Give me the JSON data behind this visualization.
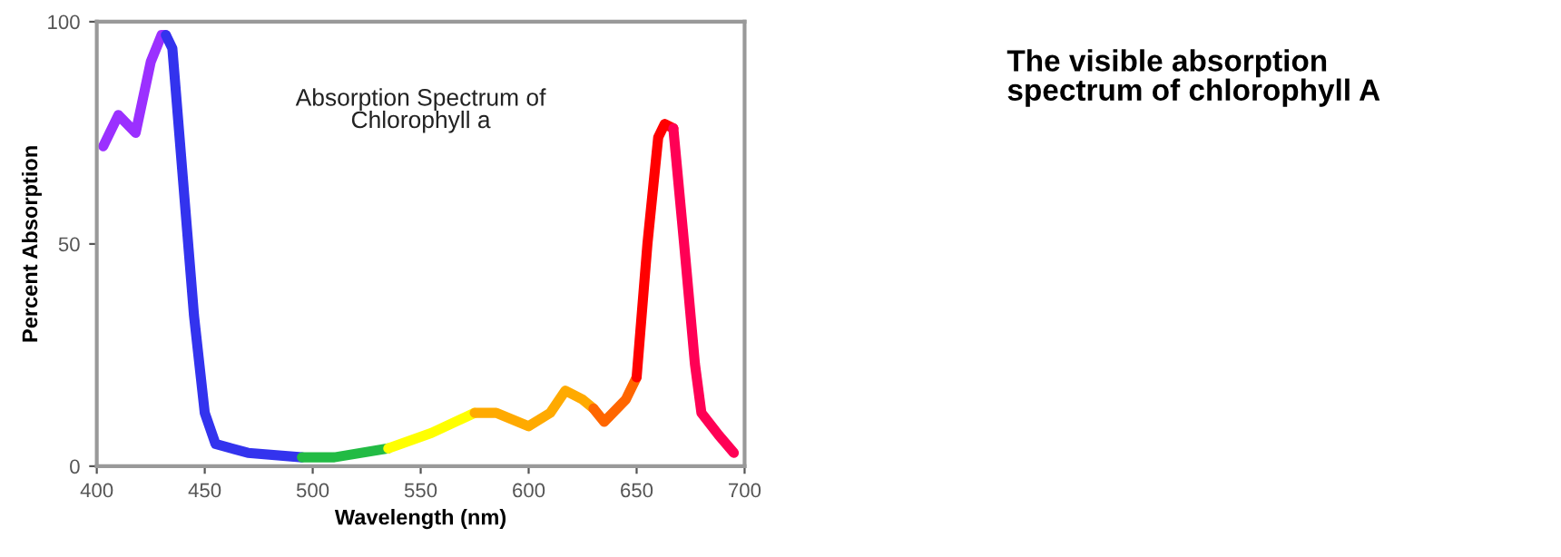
{
  "chart_data": {
    "type": "line",
    "title": "The visible absorption\nspectrum of chlorophyll A",
    "xlabel": "Wavelength (nm)",
    "ylabel": "Percent Absorption",
    "annotations": [
      "Absorption Spectrum of\nChlorophyll a"
    ],
    "xlim": [
      400,
      700
    ],
    "xticks": [
      400,
      450,
      500,
      550,
      600,
      650,
      700
    ],
    "ylim": [
      0,
      100
    ],
    "yticks": [
      0,
      50,
      100
    ],
    "grid": false,
    "legend": false,
    "series": [
      {
        "color": "#9b30ff",
        "x": [
          403,
          410,
          418,
          425,
          430,
          432
        ],
        "values": [
          72,
          79,
          75,
          91,
          97,
          97
        ]
      },
      {
        "color": "#3333ee",
        "x": [
          432,
          435,
          440,
          445,
          450,
          455,
          470,
          495
        ],
        "values": [
          97,
          94,
          64,
          34,
          12,
          5,
          3,
          2
        ]
      },
      {
        "color": "#22bb44",
        "x": [
          495,
          510,
          535
        ],
        "values": [
          2,
          2,
          4
        ]
      },
      {
        "color": "#ffff00",
        "x": [
          535,
          555,
          575
        ],
        "values": [
          4,
          7.5,
          12
        ]
      },
      {
        "color": "#ffaa00",
        "x": [
          575,
          585,
          600,
          610,
          617,
          625,
          630
        ],
        "values": [
          12,
          12,
          9,
          12,
          17,
          15,
          13
        ]
      },
      {
        "color": "#ff6600",
        "x": [
          630,
          635,
          645,
          650
        ],
        "values": [
          13,
          10,
          15,
          20
        ]
      },
      {
        "color": "#ff0000",
        "x": [
          650,
          655,
          660,
          663,
          667
        ],
        "values": [
          20,
          50,
          74,
          77,
          76
        ]
      },
      {
        "color": "#ff0055",
        "x": [
          667,
          672,
          677,
          680,
          688,
          695
        ],
        "values": [
          76,
          50,
          23,
          12,
          7,
          3
        ]
      }
    ]
  }
}
